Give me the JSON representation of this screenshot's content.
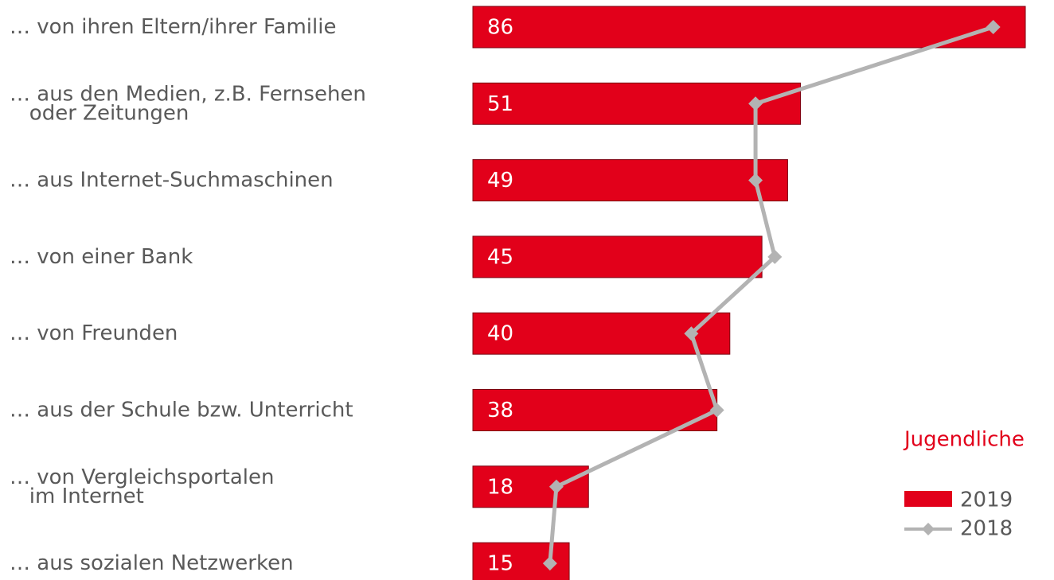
{
  "chart_data": {
    "type": "bar",
    "categories": [
      "… von ihren Eltern/ihrer Familie",
      "… aus den Medien, z.B. Fernsehen\n   oder Zeitungen",
      "… aus Internet-Suchmaschinen",
      "… von einer Bank",
      "… von Freunden",
      "… aus der Schule bzw. Unterricht",
      "… von Vergleichsportalen\n   im Internet",
      "… aus sozialen Netzwerken"
    ],
    "legend_title": "Jugendliche",
    "series": [
      {
        "name": "2019",
        "type": "bar",
        "color": "#e2001a",
        "values": [
          86,
          51,
          49,
          45,
          40,
          38,
          18,
          15
        ]
      },
      {
        "name": "2018",
        "type": "line",
        "color": "#b3b3b3",
        "values": [
          81,
          44,
          44,
          47,
          34,
          38,
          13,
          12
        ]
      }
    ]
  }
}
